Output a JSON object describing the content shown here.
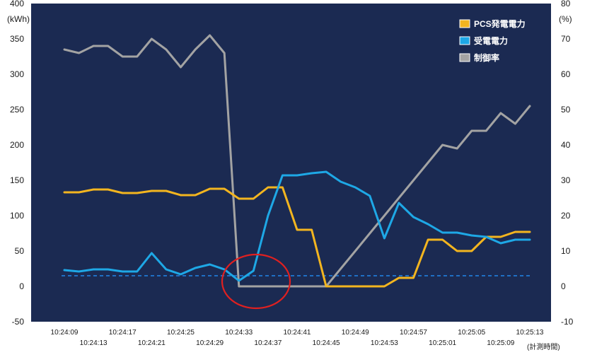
{
  "chart_data": {
    "type": "line",
    "y_left_label": "(kWh)",
    "y_right_label": "(%)",
    "x_axis_label": "(計測時間)",
    "y_left_range": [
      -50,
      400
    ],
    "y_left_ticks": [
      -50,
      0,
      50,
      100,
      150,
      200,
      250,
      300,
      350,
      400
    ],
    "y_right_range": [
      -10,
      80
    ],
    "y_right_ticks": [
      -10,
      0,
      10,
      20,
      30,
      40,
      50,
      60,
      70,
      80
    ],
    "x_range": [
      0,
      64
    ],
    "x_tick_labels": [
      "10:24:09",
      "10:24:13",
      "10:24:17",
      "10:24:21",
      "10:24:25",
      "10:24:29",
      "10:24:33",
      "10:24:37",
      "10:24:41",
      "10:24:45",
      "10:24:49",
      "10:24:53",
      "10:24:57",
      "10:25:01",
      "10:25:05",
      "10:25:09",
      "10:25:13"
    ],
    "legend_position": "top-right",
    "background_color": "#1b2a52",
    "reference_line_value": 15,
    "reference_line_color": "#1f6fc4",
    "series": [
      {
        "name": "PCS発電電力",
        "color": "#f3b51f",
        "axis": "left",
        "x": [
          0,
          2,
          4,
          6,
          8,
          10,
          12,
          14,
          16,
          18,
          20,
          22,
          24,
          26,
          28,
          30,
          32,
          34,
          36,
          38,
          40,
          42,
          44,
          46,
          48,
          50,
          52,
          54,
          56,
          58,
          60,
          62,
          64
        ],
        "y": [
          133,
          133,
          137,
          137,
          132,
          132,
          135,
          135,
          129,
          129,
          138,
          138,
          124,
          124,
          140,
          140,
          80,
          80,
          0,
          0,
          0,
          0,
          0,
          12,
          12,
          66,
          66,
          50,
          50,
          70,
          70,
          77,
          77
        ]
      },
      {
        "name": "受電電力",
        "color": "#1ea8e6",
        "axis": "left",
        "x": [
          0,
          2,
          4,
          6,
          8,
          10,
          12,
          14,
          16,
          18,
          20,
          22,
          24,
          26,
          28,
          30,
          32,
          34,
          36,
          38,
          40,
          42,
          44,
          46,
          48,
          50,
          52,
          54,
          56,
          58,
          60,
          62,
          64
        ],
        "y": [
          23,
          21,
          24,
          24,
          21,
          21,
          47,
          24,
          17,
          26,
          31,
          24,
          8,
          22,
          100,
          157,
          157,
          160,
          162,
          148,
          140,
          128,
          68,
          118,
          98,
          88,
          76,
          76,
          72,
          70,
          61,
          66,
          66
        ]
      },
      {
        "name": "制御率",
        "color": "#a3a3a3",
        "axis": "right",
        "x": [
          0,
          2,
          4,
          6,
          8,
          10,
          12,
          14,
          16,
          18,
          20,
          22,
          24,
          26,
          28,
          30,
          32,
          34,
          36,
          38,
          40,
          42,
          44,
          46,
          48,
          50,
          52,
          54,
          56,
          58,
          60,
          62,
          64
        ],
        "y": [
          67,
          66,
          68,
          68,
          65,
          65,
          70,
          67,
          62,
          67,
          71,
          66,
          0,
          0,
          0,
          0,
          0,
          0,
          0,
          5,
          10,
          15,
          20,
          25,
          30,
          35,
          40,
          39,
          44,
          44,
          49,
          46,
          51
        ]
      }
    ]
  }
}
